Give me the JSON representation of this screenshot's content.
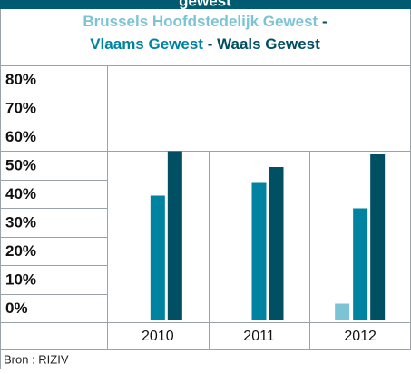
{
  "chart_data": {
    "type": "bar",
    "title": "gewest",
    "source": "Bron : RIZIV",
    "categories": [
      "2010",
      "2011",
      "2012"
    ],
    "series": [
      {
        "name": "Brussels Hoofdstedelijk Gewest",
        "color": "#7cc3d6",
        "values": [
          0,
          0,
          5
        ]
      },
      {
        "name": "Vlaams Gewest",
        "color": "#0083a0",
        "values": [
          39,
          43,
          35
        ]
      },
      {
        "name": "Waals Gewest",
        "color": "#004f63",
        "values": [
          53,
          48,
          52
        ]
      }
    ],
    "ylim": [
      0,
      80
    ],
    "yticks": [
      {
        "value": 0,
        "label": "0%"
      },
      {
        "value": 10,
        "label": "10%"
      },
      {
        "value": 20,
        "label": "20%"
      },
      {
        "value": 30,
        "label": "30%"
      },
      {
        "value": 40,
        "label": "40%"
      },
      {
        "value": 50,
        "label": "50%"
      },
      {
        "value": 60,
        "label": "60%"
      },
      {
        "value": 70,
        "label": "70%"
      },
      {
        "value": 80,
        "label": "80%"
      }
    ]
  }
}
